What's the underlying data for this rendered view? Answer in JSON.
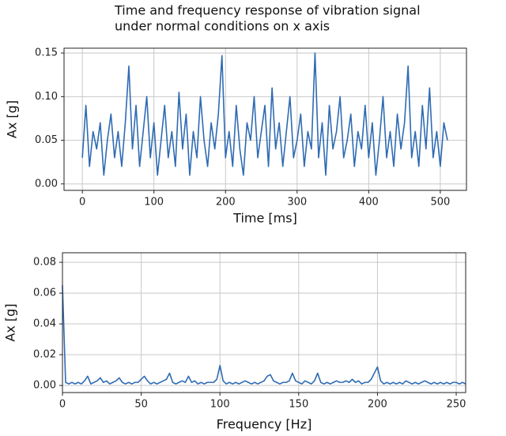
{
  "chart_data": [
    {
      "type": "line",
      "title": [
        "Time and frequency response of vibration signal",
        "under normal conditions on x axis"
      ],
      "x_label": "Time [ms]",
      "y_label": "Ax [g]",
      "color": "#2e6bb3",
      "grid": true,
      "xlim": [
        -25.55,
        536.55
      ],
      "ylim": [
        -0.0074,
        0.1555
      ],
      "xticks": [
        0,
        100,
        200,
        300,
        400,
        500
      ],
      "yticks": [
        {
          "value": 0,
          "label": "0.00"
        },
        {
          "value": 0.05,
          "label": "0.05"
        },
        {
          "value": 0.1,
          "label": "0.10"
        },
        {
          "value": 0.15,
          "label": "0.15"
        }
      ],
      "x": [
        0,
        5,
        10,
        15,
        20,
        25,
        30,
        35,
        40,
        45,
        50,
        55,
        60,
        65,
        70,
        75,
        80,
        85,
        90,
        95,
        100,
        105,
        110,
        115,
        120,
        125,
        130,
        135,
        140,
        145,
        150,
        155,
        160,
        165,
        170,
        175,
        180,
        185,
        190,
        195,
        200,
        205,
        210,
        215,
        220,
        225,
        230,
        235,
        240,
        245,
        250,
        255,
        260,
        265,
        270,
        275,
        280,
        285,
        290,
        295,
        300,
        305,
        310,
        315,
        320,
        325,
        330,
        335,
        340,
        345,
        350,
        355,
        360,
        365,
        370,
        375,
        380,
        385,
        390,
        395,
        400,
        405,
        410,
        415,
        420,
        425,
        430,
        435,
        440,
        445,
        450,
        455,
        460,
        465,
        470,
        475,
        480,
        485,
        490,
        495,
        500,
        505,
        510
      ],
      "values": [
        0.03,
        0.09,
        0.02,
        0.06,
        0.04,
        0.07,
        0.01,
        0.05,
        0.08,
        0.03,
        0.06,
        0.02,
        0.07,
        0.135,
        0.04,
        0.09,
        0.02,
        0.06,
        0.1,
        0.03,
        0.07,
        0.01,
        0.05,
        0.09,
        0.03,
        0.06,
        0.02,
        0.105,
        0.04,
        0.08,
        0.01,
        0.06,
        0.03,
        0.1,
        0.05,
        0.02,
        0.07,
        0.04,
        0.08,
        0.147,
        0.03,
        0.06,
        0.02,
        0.09,
        0.04,
        0.01,
        0.07,
        0.05,
        0.1,
        0.03,
        0.06,
        0.09,
        0.02,
        0.11,
        0.04,
        0.07,
        0.02,
        0.06,
        0.1,
        0.03,
        0.05,
        0.08,
        0.02,
        0.06,
        0.04,
        0.15,
        0.03,
        0.07,
        0.01,
        0.09,
        0.04,
        0.06,
        0.1,
        0.03,
        0.05,
        0.08,
        0.02,
        0.06,
        0.04,
        0.09,
        0.03,
        0.07,
        0.01,
        0.05,
        0.1,
        0.03,
        0.06,
        0.02,
        0.08,
        0.04,
        0.07,
        0.135,
        0.03,
        0.06,
        0.02,
        0.09,
        0.04,
        0.11,
        0.03,
        0.06,
        0.02,
        0.07,
        0.05
      ]
    },
    {
      "type": "line",
      "x_label": "Frequency [Hz]",
      "y_label": "Ax [g]",
      "color": "#2e6bb3",
      "grid": true,
      "xlim": [
        0,
        256
      ],
      "ylim": [
        -0.0046,
        0.0862
      ],
      "xticks": [
        0,
        50,
        100,
        150,
        200,
        250
      ],
      "yticks": [
        {
          "value": 0,
          "label": "0.00"
        },
        {
          "value": 0.02,
          "label": "0.02"
        },
        {
          "value": 0.04,
          "label": "0.04"
        },
        {
          "value": 0.06,
          "label": "0.06"
        },
        {
          "value": 0.08,
          "label": "0.08"
        }
      ],
      "x": [
        0,
        2,
        4,
        6,
        8,
        10,
        12,
        14,
        16,
        18,
        20,
        22,
        24,
        26,
        28,
        30,
        32,
        34,
        36,
        38,
        40,
        42,
        44,
        46,
        48,
        50,
        52,
        54,
        56,
        58,
        60,
        62,
        64,
        66,
        68,
        70,
        72,
        74,
        76,
        78,
        80,
        82,
        84,
        86,
        88,
        90,
        92,
        94,
        96,
        98,
        100,
        102,
        104,
        106,
        108,
        110,
        112,
        114,
        116,
        118,
        120,
        122,
        124,
        126,
        128,
        130,
        132,
        134,
        136,
        138,
        140,
        142,
        144,
        146,
        148,
        150,
        152,
        154,
        156,
        158,
        160,
        162,
        164,
        166,
        168,
        170,
        172,
        174,
        176,
        178,
        180,
        182,
        184,
        186,
        188,
        190,
        192,
        194,
        196,
        198,
        200,
        202,
        204,
        206,
        208,
        210,
        212,
        214,
        216,
        218,
        220,
        222,
        224,
        226,
        228,
        230,
        232,
        234,
        236,
        238,
        240,
        242,
        244,
        246,
        248,
        250,
        252,
        254,
        256
      ],
      "values": [
        0.065,
        0.002,
        0.001,
        0.002,
        0.001,
        0.002,
        0.001,
        0.003,
        0.006,
        0.001,
        0.002,
        0.003,
        0.005,
        0.002,
        0.003,
        0.001,
        0.002,
        0.003,
        0.005,
        0.002,
        0.001,
        0.002,
        0.001,
        0.002,
        0.002,
        0.004,
        0.006,
        0.003,
        0.001,
        0.002,
        0.001,
        0.002,
        0.003,
        0.004,
        0.008,
        0.002,
        0.001,
        0.002,
        0.003,
        0.002,
        0.006,
        0.002,
        0.003,
        0.001,
        0.002,
        0.001,
        0.002,
        0.002,
        0.002,
        0.004,
        0.013,
        0.003,
        0.001,
        0.002,
        0.001,
        0.002,
        0.001,
        0.002,
        0.003,
        0.002,
        0.001,
        0.002,
        0.001,
        0.002,
        0.003,
        0.006,
        0.007,
        0.003,
        0.002,
        0.001,
        0.002,
        0.002,
        0.003,
        0.008,
        0.003,
        0.002,
        0.001,
        0.003,
        0.002,
        0.001,
        0.003,
        0.008,
        0.002,
        0.001,
        0.002,
        0.001,
        0.002,
        0.003,
        0.002,
        0.002,
        0.003,
        0.002,
        0.004,
        0.002,
        0.003,
        0.001,
        0.002,
        0.002,
        0.004,
        0.008,
        0.012,
        0.003,
        0.001,
        0.002,
        0.001,
        0.002,
        0.001,
        0.002,
        0.001,
        0.003,
        0.002,
        0.001,
        0.002,
        0.001,
        0.002,
        0.003,
        0.002,
        0.001,
        0.002,
        0.001,
        0.002,
        0.001,
        0.002,
        0.001,
        0.002,
        0.002,
        0.001,
        0.002,
        0.001
      ]
    }
  ]
}
